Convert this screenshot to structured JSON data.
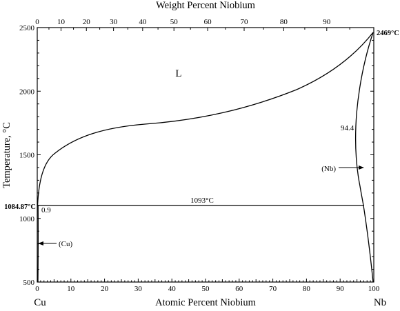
{
  "diagram": {
    "top_axis_title": "Weight Percent Niobium",
    "bottom_axis_title": "Atomic Percent Niobium",
    "left_axis_title": "Temperature, °C",
    "left_component": "Cu",
    "right_component": "Nb",
    "top_ticks": [
      "0",
      "10",
      "20",
      "30",
      "40",
      "50",
      "60",
      "70",
      "80",
      "90"
    ],
    "bottom_ticks": [
      "0",
      "10",
      "20",
      "30",
      "40",
      "50",
      "60",
      "70",
      "80",
      "90",
      "100"
    ],
    "left_ticks": [
      "2500",
      "2000",
      "1500",
      "1000",
      "500"
    ],
    "phase_liquid": "L",
    "phase_nb_arrow": "(Nb)",
    "phase_cu_arrow": "(Cu)",
    "cu_melting": "1084.87°C",
    "nb_melting": "2469°C",
    "eutectic_temp": "1093°C",
    "cu_solubility": "0.9",
    "nb_solubility": "94.4"
  }
}
